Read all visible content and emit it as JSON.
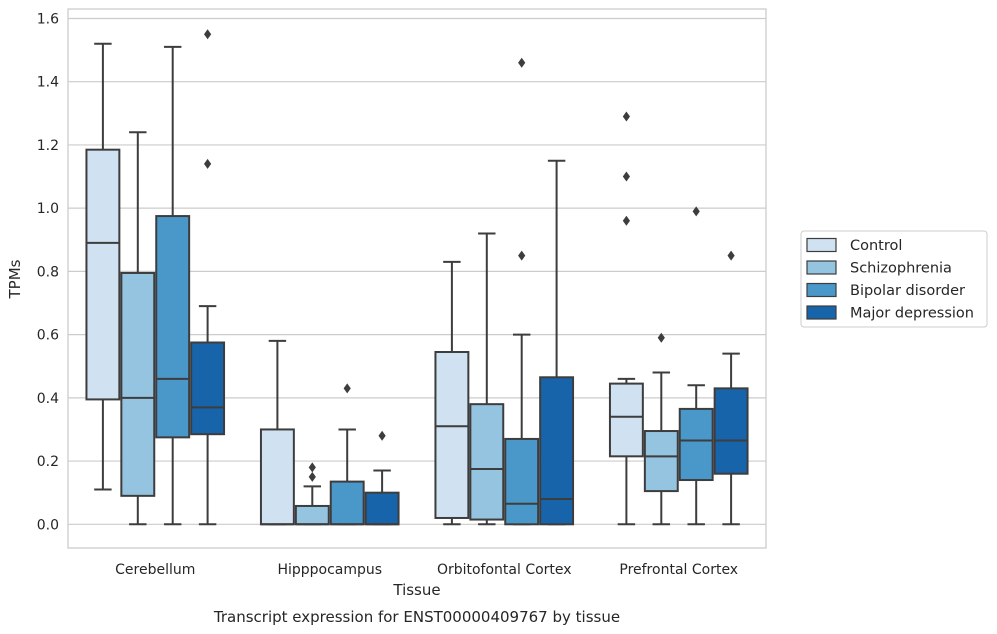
{
  "chart_data": {
    "type": "boxplot",
    "xlabel": "Tissue",
    "ylabel": "TPMs",
    "caption": "Transcript expression for ENST00000409767 by tissue",
    "ylim": [
      -0.075,
      1.63
    ],
    "yticks": [
      "0.0",
      "0.2",
      "0.4",
      "0.6",
      "0.8",
      "1.0",
      "1.2",
      "1.4",
      "1.6"
    ],
    "grid": "horizontal",
    "legend_position": "right",
    "categories": [
      "Cerebellum",
      "Hipppocampus",
      "Orbitofontal Cortex",
      "Prefrontal Cortex"
    ],
    "series": [
      {
        "name": "Control",
        "color": "#d0e1f2",
        "boxes": [
          {
            "q1": 0.395,
            "median": 0.89,
            "q3": 1.185,
            "whislo": 0.11,
            "whishi": 1.52,
            "fliers": []
          },
          {
            "q1": 0.0,
            "median": 0.0,
            "q3": 0.3,
            "whislo": 0.0,
            "whishi": 0.58,
            "fliers": []
          },
          {
            "q1": 0.02,
            "median": 0.31,
            "q3": 0.545,
            "whislo": 0.0,
            "whishi": 0.83,
            "fliers": []
          },
          {
            "q1": 0.215,
            "median": 0.34,
            "q3": 0.445,
            "whislo": 0.0,
            "whishi": 0.46,
            "fliers": [
              0.96,
              1.1,
              1.29
            ]
          }
        ]
      },
      {
        "name": "Schizophrenia",
        "color": "#94c4df",
        "boxes": [
          {
            "q1": 0.09,
            "median": 0.4,
            "q3": 0.795,
            "whislo": 0.0,
            "whishi": 1.24,
            "fliers": []
          },
          {
            "q1": 0.0,
            "median": 0.0,
            "q3": 0.058,
            "whislo": 0.0,
            "whishi": 0.12,
            "fliers": [
              0.15,
              0.18
            ]
          },
          {
            "q1": 0.015,
            "median": 0.175,
            "q3": 0.38,
            "whislo": 0.0,
            "whishi": 0.92,
            "fliers": []
          },
          {
            "q1": 0.105,
            "median": 0.215,
            "q3": 0.295,
            "whislo": 0.0,
            "whishi": 0.48,
            "fliers": [
              0.59
            ]
          }
        ]
      },
      {
        "name": "Bipolar disorder",
        "color": "#4a98c9",
        "boxes": [
          {
            "q1": 0.275,
            "median": 0.46,
            "q3": 0.975,
            "whislo": 0.0,
            "whishi": 1.51,
            "fliers": []
          },
          {
            "q1": 0.0,
            "median": 0.0,
            "q3": 0.135,
            "whislo": 0.0,
            "whishi": 0.3,
            "fliers": [
              0.43
            ]
          },
          {
            "q1": 0.0,
            "median": 0.065,
            "q3": 0.27,
            "whislo": 0.0,
            "whishi": 0.6,
            "fliers": [
              0.85,
              1.46
            ]
          },
          {
            "q1": 0.14,
            "median": 0.265,
            "q3": 0.365,
            "whislo": 0.0,
            "whishi": 0.44,
            "fliers": [
              0.99
            ]
          }
        ]
      },
      {
        "name": "Major depression",
        "color": "#1764ab",
        "boxes": [
          {
            "q1": 0.285,
            "median": 0.37,
            "q3": 0.575,
            "whislo": 0.0,
            "whishi": 0.69,
            "fliers": [
              1.14,
              1.55
            ]
          },
          {
            "q1": 0.0,
            "median": 0.0,
            "q3": 0.1,
            "whislo": 0.0,
            "whishi": 0.17,
            "fliers": [
              0.28
            ]
          },
          {
            "q1": 0.0,
            "median": 0.08,
            "q3": 0.465,
            "whislo": 0.0,
            "whishi": 1.15,
            "fliers": []
          },
          {
            "q1": 0.16,
            "median": 0.265,
            "q3": 0.43,
            "whislo": 0.0,
            "whishi": 0.54,
            "fliers": [
              0.85
            ]
          }
        ]
      }
    ]
  }
}
